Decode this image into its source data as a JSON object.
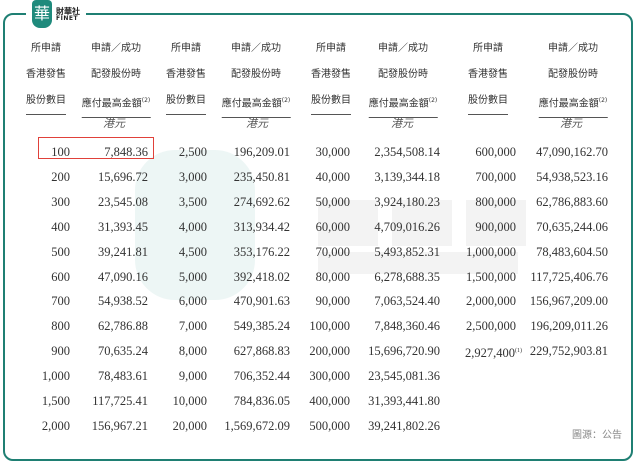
{
  "logo": {
    "mark": "華",
    "cn": "財華社",
    "en": "FINET"
  },
  "watermark": {
    "cn": "財華社",
    "en": "FINET"
  },
  "headers": {
    "shares": [
      "所申請",
      "香港發售",
      "股份數目"
    ],
    "amount": [
      "申請／成功",
      "配發股份時",
      "應付最高金額"
    ],
    "amount_note": "(2)",
    "unit": "港元"
  },
  "groups": [
    {
      "shares": [
        "100",
        "200",
        "300",
        "400",
        "500",
        "600",
        "700",
        "800",
        "900",
        "1,000",
        "1,500",
        "2,000"
      ],
      "amounts": [
        "7,848.36",
        "15,696.72",
        "23,545.08",
        "31,393.45",
        "39,241.81",
        "47,090.16",
        "54,938.52",
        "62,786.88",
        "70,635.24",
        "78,483.61",
        "117,725.41",
        "156,967.21"
      ]
    },
    {
      "shares": [
        "2,500",
        "3,000",
        "3,500",
        "4,000",
        "4,500",
        "5,000",
        "6,000",
        "7,000",
        "8,000",
        "9,000",
        "10,000",
        "20,000"
      ],
      "amounts": [
        "196,209.01",
        "235,450.81",
        "274,692.62",
        "313,934.42",
        "353,176.22",
        "392,418.02",
        "470,901.63",
        "549,385.24",
        "627,868.83",
        "706,352.44",
        "784,836.05",
        "1,569,672.09"
      ]
    },
    {
      "shares": [
        "30,000",
        "40,000",
        "50,000",
        "60,000",
        "70,000",
        "80,000",
        "90,000",
        "100,000",
        "200,000",
        "300,000",
        "400,000",
        "500,000"
      ],
      "amounts": [
        "2,354,508.14",
        "3,139,344.18",
        "3,924,180.23",
        "4,709,016.26",
        "5,493,852.31",
        "6,278,688.35",
        "7,063,524.40",
        "7,848,360.46",
        "15,696,720.90",
        "23,545,081.36",
        "31,393,441.80",
        "39,241,802.26"
      ]
    },
    {
      "shares": [
        "600,000",
        "700,000",
        "800,000",
        "900,000",
        "1,000,000",
        "1,500,000",
        "2,000,000",
        "2,500,000",
        "2,927,400"
      ],
      "share_notes": {
        "8": "(1)"
      },
      "amounts": [
        "47,090,162.70",
        "54,938,523.16",
        "62,786,883.60",
        "70,635,244.06",
        "78,483,604.50",
        "117,725,406.76",
        "156,967,209.00",
        "196,209,011.26",
        "229,752,903.81"
      ]
    }
  ],
  "source": "圖源：公告",
  "colors": {
    "frame": "#1f7f73",
    "highlight": "#e0413a"
  }
}
